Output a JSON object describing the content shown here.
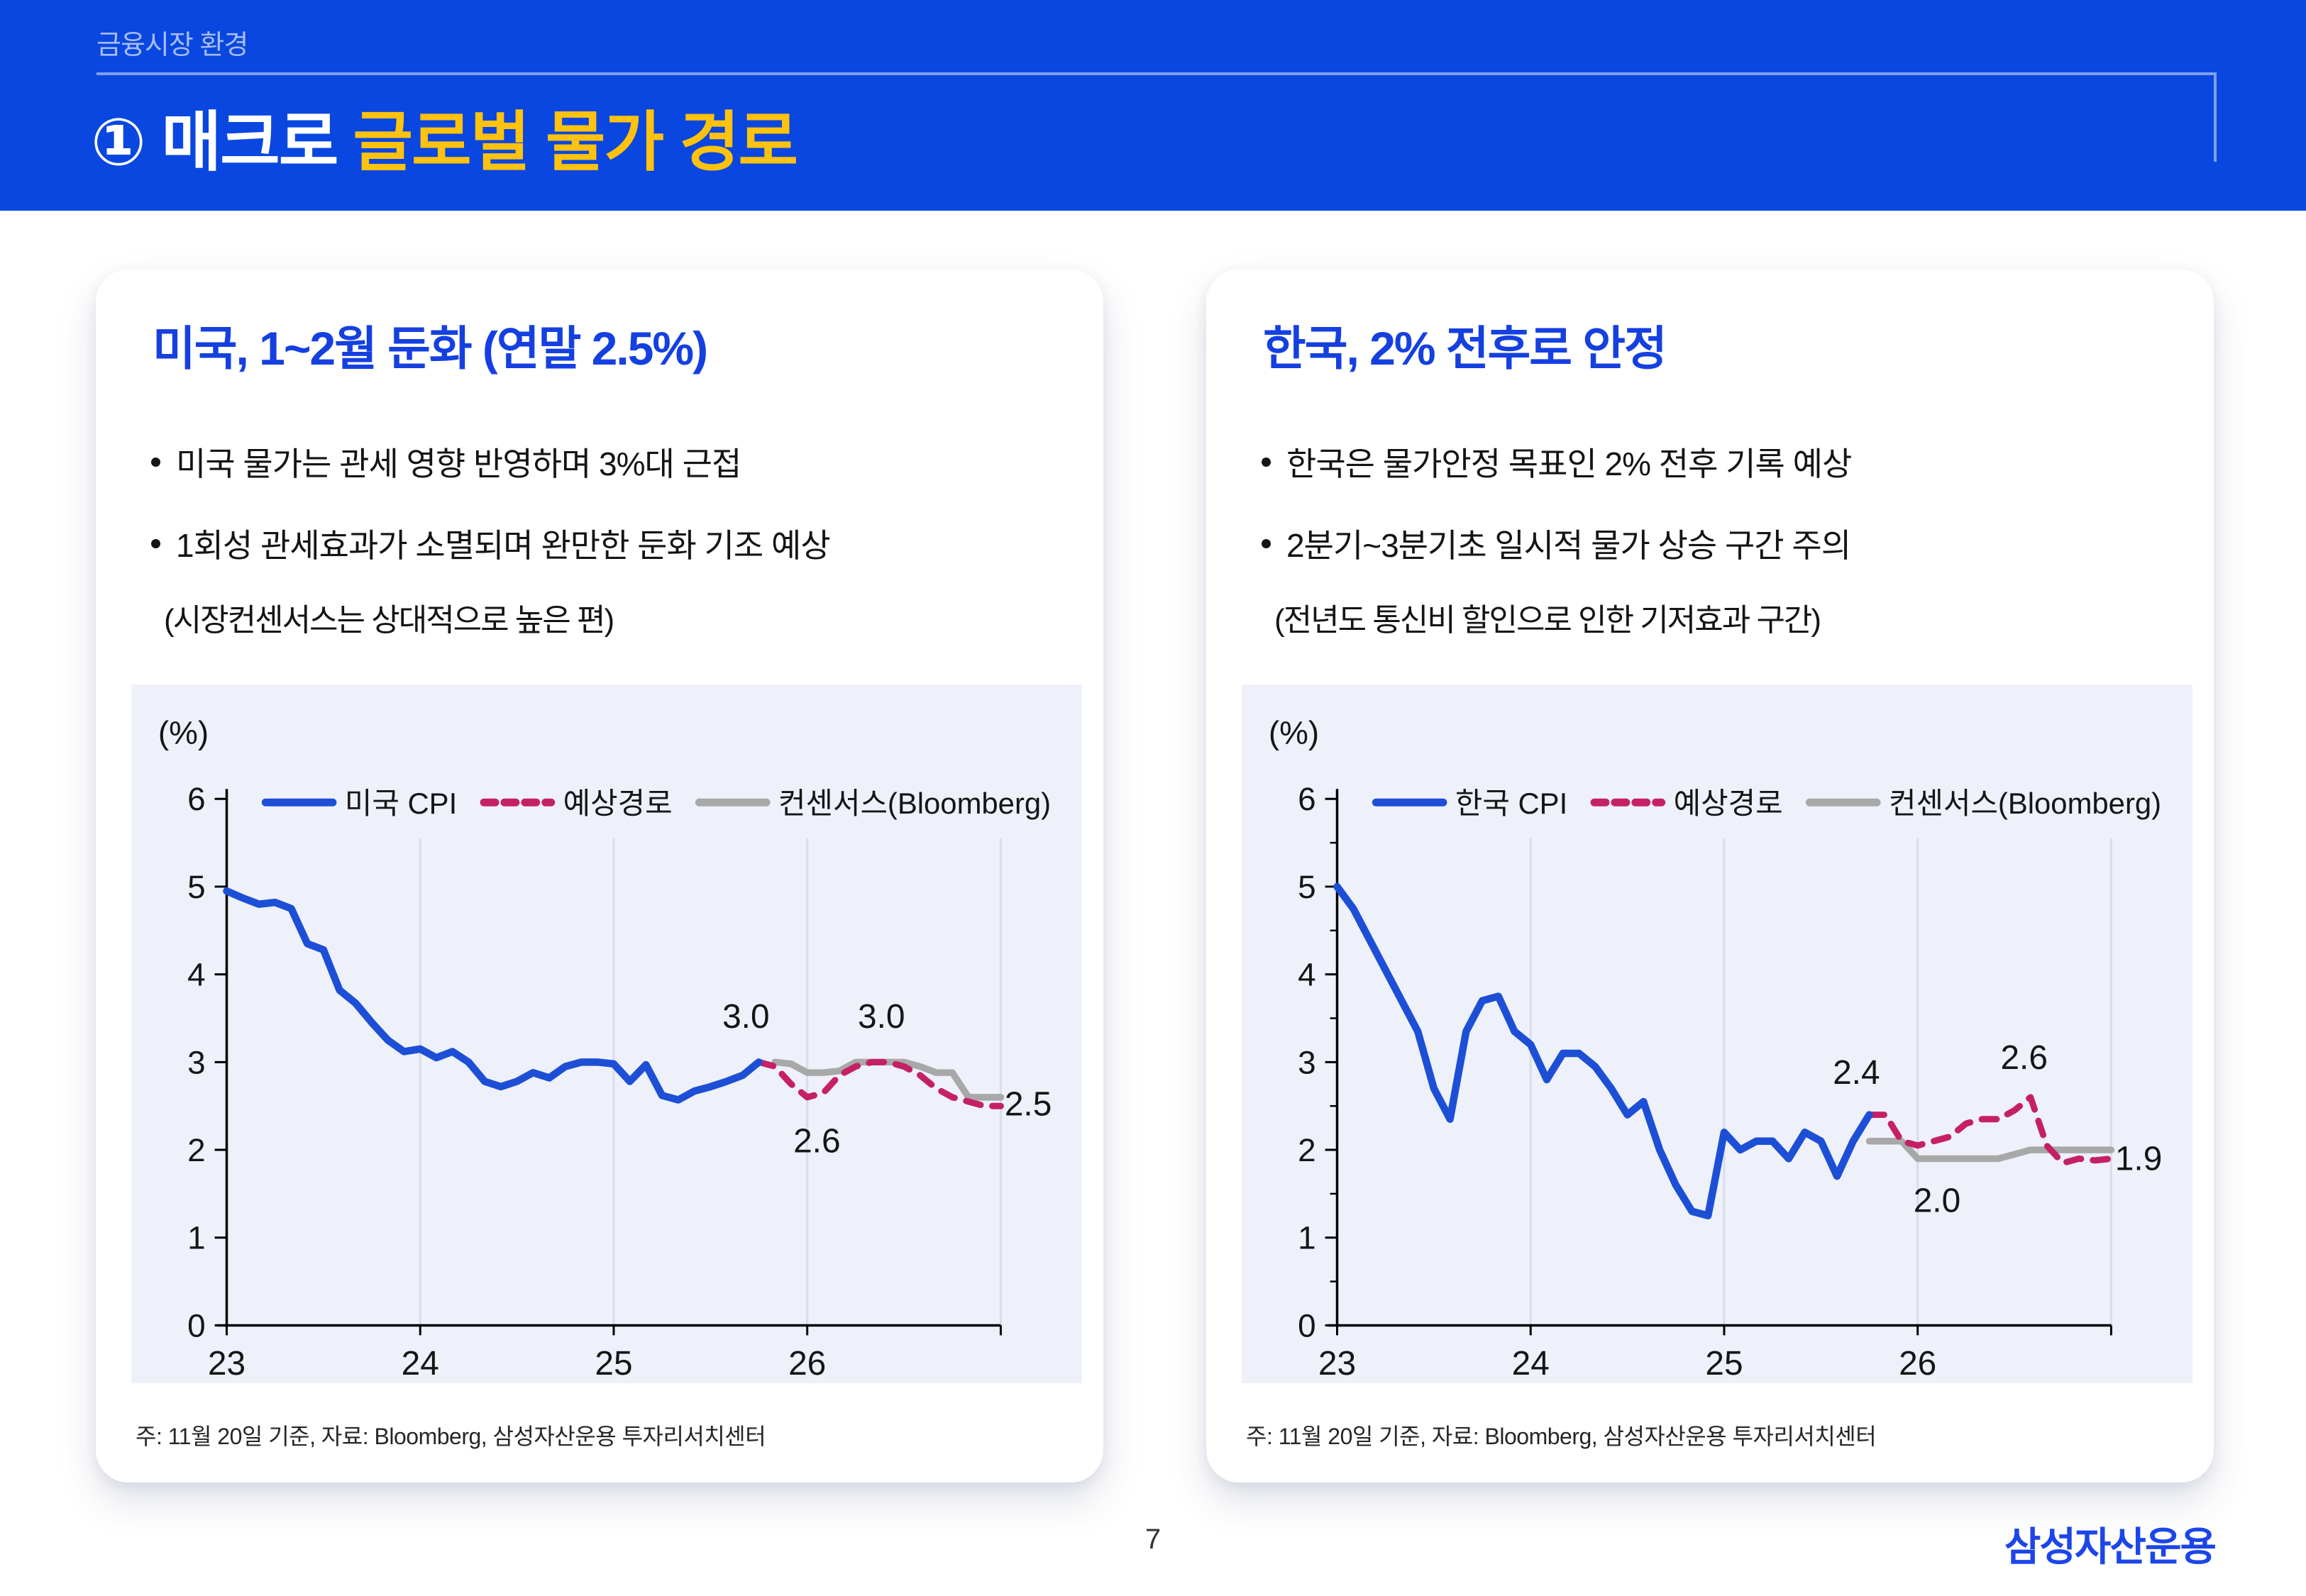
{
  "banner": {
    "eyebrow": "금융시장 환경",
    "title_white": "① 매크로",
    "title_yellow": "글로벌 물가 경로"
  },
  "cards": [
    {
      "title": "미국, 1~2월 둔화 (연말 2.5%)",
      "bullets": [
        "미국 물가는 관세 영향 반영하며 3%대 근접",
        "1회성 관세효과가 소멸되며 완만한 둔화 기조 예상"
      ],
      "note": "(시장컨센서스는 상대적으로 높은 편)",
      "footnote": "주: 11월 20일 기준, 자료: Bloomberg, 삼성자산운용 투자리서치센터"
    },
    {
      "title": "한국, 2% 전후로 안정",
      "bullets": [
        "한국은 물가안정 목표인 2% 전후 기록 예상",
        "2분기~3분기초 일시적 물가 상승 구간 주의"
      ],
      "note": "(전년도 통신비 할인으로 인한 기저효과 구간)",
      "footnote": "주: 11월 20일 기준, 자료: Bloomberg, 삼성자산운용 투자리서치센터"
    }
  ],
  "footer": {
    "page_number": "7",
    "logo": "삼성자산운용"
  },
  "colors": {
    "banner_bg": "#0A47E0",
    "banner_accent_text": "#A6BCF4",
    "banner_rule": "#7FA0EF",
    "title_yellow": "#FFC20E",
    "card_title_blue": "#1540E0",
    "panel_bg": "#EEF1FA",
    "line_blue": "#1D4FD6",
    "line_pink": "#C52066",
    "line_gray": "#A8A8A8",
    "gridline": "#D9DCE9",
    "axis": "#000000",
    "annotation_text": "#151515",
    "logo_blue": "#1C46E8"
  },
  "chart_data": [
    {
      "type": "line",
      "title": "미국 CPI 경로",
      "unit_label": "(%)",
      "ylim": [
        0,
        6
      ],
      "yticks": [
        0,
        1,
        2,
        3,
        4,
        5,
        6
      ],
      "minor_yticks": false,
      "x_months": 48,
      "xticks": [
        {
          "month": 0,
          "label": "23"
        },
        {
          "month": 12,
          "label": "24"
        },
        {
          "month": 24,
          "label": "25"
        },
        {
          "month": 36,
          "label": "26"
        }
      ],
      "gridline_months": [
        12,
        24,
        36,
        48
      ],
      "legend_x": 190,
      "legend": [
        {
          "label": "미국 CPI",
          "style": "solid",
          "color": "#1D4FD6"
        },
        {
          "label": "예상경로",
          "style": "dashed",
          "color": "#C52066"
        },
        {
          "label": "컨센서스(Bloomberg)",
          "style": "solid",
          "color": "#A8A8A8"
        }
      ],
      "series": [
        {
          "name": "컨센서스(Bloomberg)",
          "color": "#A8A8A8",
          "style": "solid",
          "width": 9.5,
          "start_month": 34,
          "values": [
            3.0,
            2.98,
            2.88,
            2.88,
            2.9,
            3.0,
            3.0,
            3.0,
            3.0,
            2.95,
            2.88,
            2.88,
            2.6,
            2.6,
            2.6
          ]
        },
        {
          "name": "예상경로",
          "color": "#C52066",
          "style": "dashed",
          "width": 9,
          "start_month": 33,
          "values": [
            3.0,
            2.95,
            2.75,
            2.6,
            2.65,
            2.85,
            2.95,
            3.0,
            3.0,
            2.95,
            2.85,
            2.7,
            2.6,
            2.55,
            2.5,
            2.5
          ]
        },
        {
          "name": "미국 CPI",
          "color": "#1D4FD6",
          "style": "solid",
          "width": 10.5,
          "start_month": 0,
          "values": [
            4.95,
            4.87,
            4.8,
            4.82,
            4.75,
            4.35,
            4.28,
            3.82,
            3.67,
            3.45,
            3.25,
            3.12,
            3.15,
            3.05,
            3.12,
            3.0,
            2.78,
            2.72,
            2.78,
            2.88,
            2.82,
            2.95,
            3.0,
            3.0,
            2.98,
            2.78,
            2.97,
            2.62,
            2.57,
            2.67,
            2.72,
            2.78,
            2.85,
            3.0
          ]
        }
      ],
      "annotations": [
        {
          "month": 32.2,
          "value": 3.52,
          "text": "3.0"
        },
        {
          "month": 40.6,
          "value": 3.52,
          "text": "3.0"
        },
        {
          "month": 36.6,
          "value": 2.1,
          "text": "2.6"
        },
        {
          "month": 49.7,
          "value": 2.52,
          "text": "2.5"
        }
      ]
    },
    {
      "type": "line",
      "title": "한국 CPI 경로",
      "unit_label": "(%)",
      "ylim": [
        0,
        6
      ],
      "yticks": [
        0,
        1,
        2,
        3,
        4,
        5,
        6
      ],
      "minor_yticks": true,
      "x_months": 48,
      "xticks": [
        {
          "month": 0,
          "label": "23"
        },
        {
          "month": 12,
          "label": "24"
        },
        {
          "month": 24,
          "label": "25"
        },
        {
          "month": 36,
          "label": "26"
        }
      ],
      "gridline_months": [
        12,
        24,
        36,
        48
      ],
      "legend_x": 190,
      "legend": [
        {
          "label": "한국 CPI",
          "style": "solid",
          "color": "#1D4FD6"
        },
        {
          "label": "예상경로",
          "style": "dashed",
          "color": "#C52066"
        },
        {
          "label": "컨센서스(Bloomberg)",
          "style": "solid",
          "color": "#A8A8A8"
        }
      ],
      "series": [
        {
          "name": "컨센서스(Bloomberg)",
          "color": "#A8A8A8",
          "style": "solid",
          "width": 9.5,
          "start_month": 33,
          "values": [
            2.1,
            2.1,
            2.1,
            1.9,
            1.9,
            1.9,
            1.9,
            1.9,
            1.9,
            1.95,
            2.0,
            2.0,
            2.0,
            2.0,
            2.0,
            2.0
          ]
        },
        {
          "name": "예상경로",
          "color": "#C52066",
          "style": "dashed",
          "width": 9,
          "start_month": 33,
          "values": [
            2.4,
            2.4,
            2.1,
            2.05,
            2.1,
            2.15,
            2.3,
            2.35,
            2.35,
            2.45,
            2.6,
            2.05,
            1.85,
            1.9,
            1.88,
            1.9
          ]
        },
        {
          "name": "한국 CPI",
          "color": "#1D4FD6",
          "style": "solid",
          "width": 10.5,
          "start_month": 0,
          "values": [
            5.0,
            4.75,
            4.4,
            4.05,
            3.7,
            3.35,
            2.7,
            2.35,
            3.35,
            3.7,
            3.75,
            3.35,
            3.2,
            2.8,
            3.1,
            3.1,
            2.95,
            2.7,
            2.4,
            2.55,
            2.0,
            1.6,
            1.3,
            1.25,
            2.2,
            2.0,
            2.1,
            2.1,
            1.9,
            2.2,
            2.1,
            1.7,
            2.1,
            2.4
          ]
        }
      ],
      "annotations": [
        {
          "month": 32.2,
          "value": 2.88,
          "text": "2.4"
        },
        {
          "month": 42.6,
          "value": 3.05,
          "text": "2.6"
        },
        {
          "month": 37.2,
          "value": 1.42,
          "text": "2.0"
        },
        {
          "month": 49.7,
          "value": 1.9,
          "text": "1.9"
        }
      ]
    }
  ]
}
